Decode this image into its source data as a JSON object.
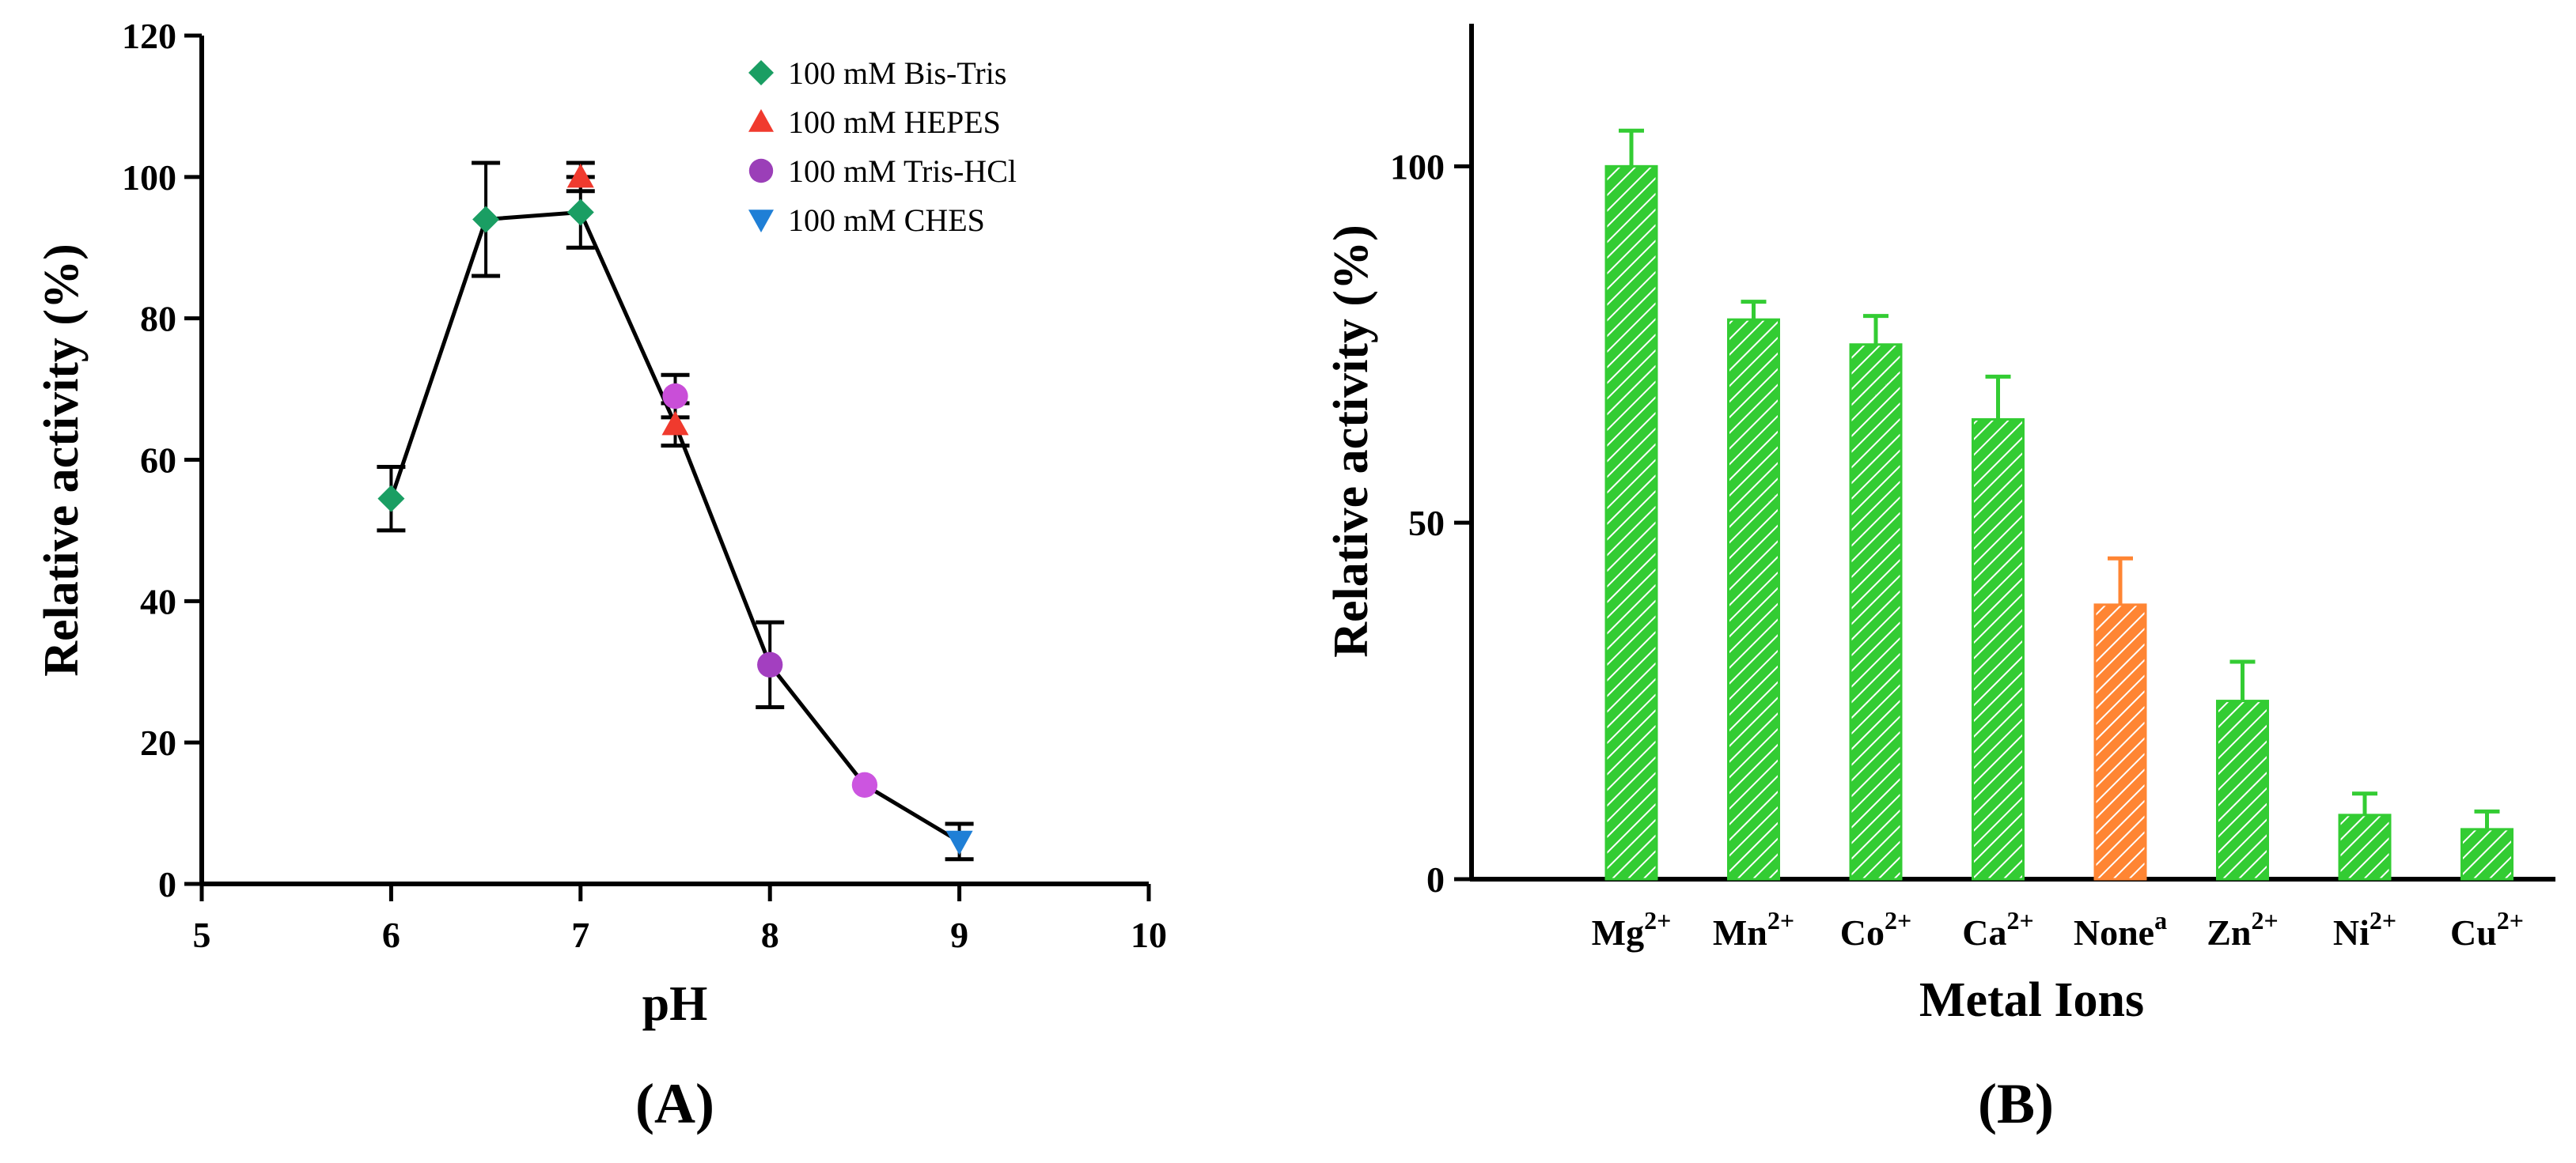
{
  "chart_data": [
    {
      "type": "line",
      "panel_label": "(A)",
      "xlabel": "pH",
      "ylabel": "Relative activity (%)",
      "xlim": [
        5,
        10
      ],
      "ylim": [
        0,
        120
      ],
      "xticks": [
        5,
        6,
        7,
        8,
        9,
        10
      ],
      "yticks": [
        0,
        20,
        40,
        60,
        80,
        100,
        120
      ],
      "legend_position": "top-right",
      "connecting_line": {
        "x": [
          6,
          6.5,
          7,
          7.5,
          8,
          8.5,
          9
        ],
        "y": [
          54.5,
          94,
          95,
          65,
          31,
          14,
          6
        ]
      },
      "series": [
        {
          "name": "100 mM Bis-Tris",
          "marker": "diamond",
          "color": "#1a9e63",
          "x": [
            6,
            6.5,
            7
          ],
          "y": [
            54.5,
            94,
            95
          ],
          "err": [
            4.5,
            8,
            5
          ]
        },
        {
          "name": "100 mM HEPES",
          "marker": "triangle-up",
          "color": "#f03a2e",
          "x": [
            7,
            7.5
          ],
          "y": [
            100,
            65
          ],
          "err": [
            2,
            3
          ]
        },
        {
          "name": "100 mM Tris-HCl",
          "marker": "circle",
          "color": "#9b3fb8",
          "marker_fills": [
            "#c94ed8",
            "#a33fc0",
            "#cc55e0"
          ],
          "x": [
            7.5,
            8,
            8.5
          ],
          "y": [
            69,
            31,
            14
          ],
          "err": [
            3,
            6,
            0
          ]
        },
        {
          "name": "100 mM CHES",
          "marker": "triangle-down",
          "color": "#1f7fd6",
          "x": [
            9
          ],
          "y": [
            6
          ],
          "err": [
            2.5
          ]
        }
      ]
    },
    {
      "type": "bar",
      "panel_label": "(B)",
      "xlabel": "Metal Ions",
      "ylabel": "Relative activity (%)",
      "ylim": [
        0,
        120
      ],
      "yticks": [
        0,
        50,
        100
      ],
      "categories": [
        {
          "base": "Mg",
          "sup": "2+"
        },
        {
          "base": "Mn",
          "sup": "2+"
        },
        {
          "base": "Co",
          "sup": "2+"
        },
        {
          "base": "Ca",
          "sup": "2+"
        },
        {
          "base": "None",
          "sup": "a"
        },
        {
          "base": "Zn",
          "sup": "2+"
        },
        {
          "base": "Ni",
          "sup": "2+"
        },
        {
          "base": "Cu",
          "sup": "2+"
        }
      ],
      "values": [
        100,
        78.5,
        75,
        64.5,
        38.5,
        25,
        9,
        7
      ],
      "errors": [
        5,
        2.5,
        4,
        6,
        6.5,
        5.5,
        3,
        2.5
      ],
      "colors": [
        "#33cc33",
        "#33cc33",
        "#33cc33",
        "#33cc33",
        "#ff8533",
        "#33cc33",
        "#33cc33",
        "#33cc33"
      ]
    }
  ]
}
